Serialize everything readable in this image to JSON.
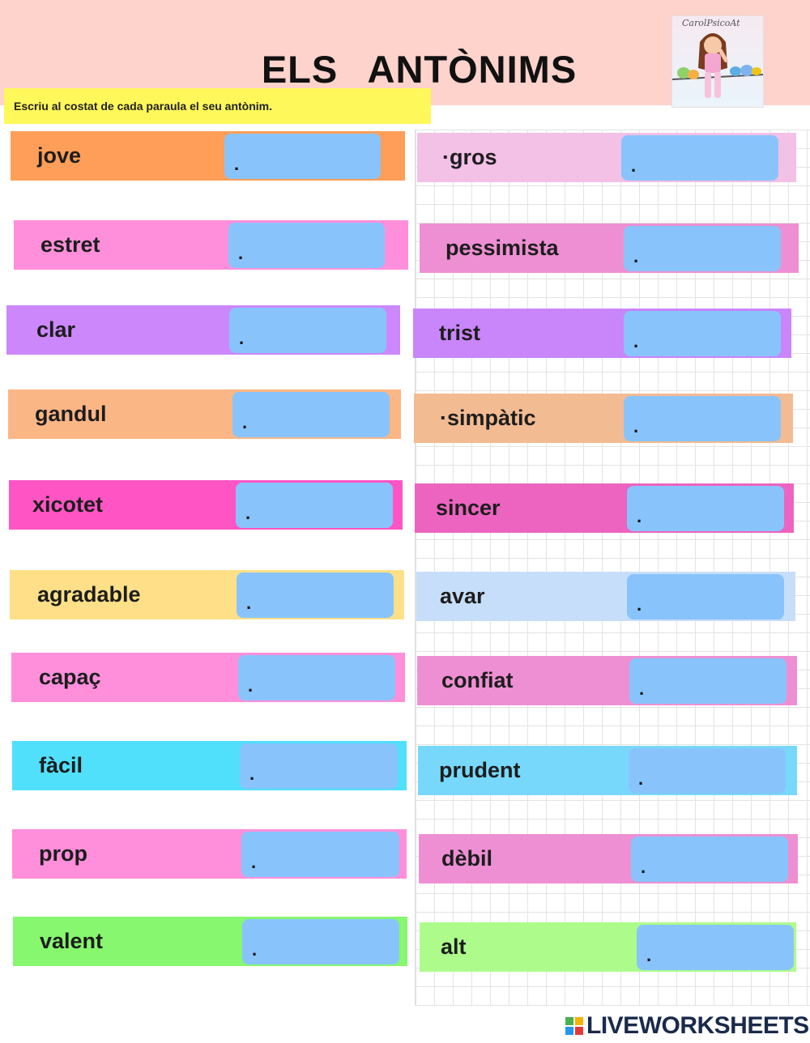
{
  "page": {
    "title": "ELS   ANTÒNIMS",
    "instruction": "Escriu al costat de cada paraula el seu antònim.",
    "avatar_signature": "CarolPsicoAt",
    "footer_brand": "LIVEWORKSHEETS",
    "footer_mark_letters": [
      "L",
      "I",
      "V",
      "E"
    ]
  },
  "colors": {
    "header_band": "#fdd3cc",
    "instruction_bg": "#fff85a",
    "answer_box": "#88c4fb"
  },
  "left_words": [
    {
      "word": "jove",
      "color": "#ff9e59",
      "answer": "."
    },
    {
      "word": "estret",
      "color": "#ff8fdb",
      "answer": "."
    },
    {
      "word": "clar",
      "color": "#cc88fb",
      "answer": "."
    },
    {
      "word": "gandul",
      "color": "#fbb685",
      "answer": "."
    },
    {
      "word": "xicotet",
      "color": "#ff55c4",
      "answer": "."
    },
    {
      "word": "agradable",
      "color": "#ffe088",
      "answer": "."
    },
    {
      "word": "capaç",
      "color": "#ff8fdb",
      "answer": "."
    },
    {
      "word": "fàcil",
      "color": "#50e0fb",
      "answer": "."
    },
    {
      "word": "prop",
      "color": "#ff8fdb",
      "answer": "."
    },
    {
      "word": "valent",
      "color": "#86f76e",
      "answer": "."
    }
  ],
  "right_words": [
    {
      "word": "·gros",
      "color": "#f3c0e6",
      "answer": "."
    },
    {
      "word": "pessimista",
      "color": "#ee8fd3",
      "answer": "."
    },
    {
      "word": "trist",
      "color": "#c985fa",
      "answer": "."
    },
    {
      "word": "·simpàtic",
      "color": "#f3bb92",
      "answer": "."
    },
    {
      "word": "sincer",
      "color": "#ec64c0",
      "answer": "."
    },
    {
      "word": "avar",
      "color": "#c7defa",
      "answer": "."
    },
    {
      "word": "confiat",
      "color": "#ee8fd3",
      "answer": "."
    },
    {
      "word": "prudent",
      "color": "#78d8fb",
      "answer": "."
    },
    {
      "word": "dèbil",
      "color": "#ee8fd3",
      "answer": "."
    },
    {
      "word": "alt",
      "color": "#adfb8b",
      "answer": "."
    }
  ]
}
